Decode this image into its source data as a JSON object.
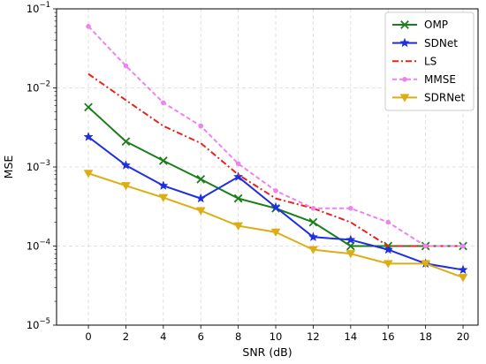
{
  "chart_data": {
    "type": "line",
    "title": "",
    "xlabel": "SNR (dB)",
    "ylabel": "MSE",
    "yscale": "log",
    "xlim": [
      -1.7,
      20.8
    ],
    "ylim": [
      1e-05,
      0.1
    ],
    "xticks": [
      0,
      2,
      4,
      6,
      8,
      10,
      12,
      14,
      16,
      18,
      20
    ],
    "xtick_labels": [
      "0",
      "2",
      "4",
      "6",
      "8",
      "10",
      "12",
      "14",
      "16",
      "18",
      "20"
    ],
    "yticks": [
      1e-05,
      0.0001,
      0.001,
      0.01,
      0.1
    ],
    "ytick_labels": [
      {
        "base": "10",
        "exp": "−5"
      },
      {
        "base": "10",
        "exp": "−4"
      },
      {
        "base": "10",
        "exp": "−3"
      },
      {
        "base": "10",
        "exp": "−2"
      },
      {
        "base": "10",
        "exp": "−1"
      }
    ],
    "grid": true,
    "legend_position": "top-right",
    "x": [
      0,
      2,
      4,
      6,
      8,
      10,
      12,
      14,
      16,
      18,
      20
    ],
    "series": [
      {
        "name": "OMP",
        "color": "#1a7f1a",
        "dash": "solid",
        "marker": "x",
        "values": [
          0.0057,
          0.0021,
          0.0012,
          0.0007,
          0.0004,
          0.0003,
          0.0002,
          0.0001,
          0.0001,
          0.0001,
          0.0001
        ]
      },
      {
        "name": "SDNet",
        "color": "#1f2fe0",
        "dash": "solid",
        "marker": "star",
        "values": [
          0.0024,
          0.00105,
          0.00058,
          0.0004,
          0.00075,
          0.00031,
          0.00013,
          0.00012,
          9e-05,
          6e-05,
          5e-05
        ]
      },
      {
        "name": "LS",
        "color": "#e8231c",
        "dash": "dashdot",
        "marker": "none",
        "values": [
          0.015,
          0.007,
          0.0033,
          0.002,
          0.0008,
          0.0004,
          0.0003,
          0.0002,
          0.0001,
          0.0001,
          0.0001
        ]
      },
      {
        "name": "MMSE",
        "color": "#ee82ee",
        "dash": "dashed",
        "marker": "dot",
        "values": [
          0.06,
          0.019,
          0.0065,
          0.0033,
          0.0011,
          0.0005,
          0.0003,
          0.0003,
          0.0002,
          0.0001,
          0.0001
        ]
      },
      {
        "name": "SDRNet",
        "color": "#dcae14",
        "dash": "solid",
        "marker": "triangle-down",
        "values": [
          0.00083,
          0.00058,
          0.00041,
          0.00028,
          0.00018,
          0.00015,
          9e-05,
          8e-05,
          6e-05,
          6e-05,
          4e-05
        ]
      }
    ]
  }
}
